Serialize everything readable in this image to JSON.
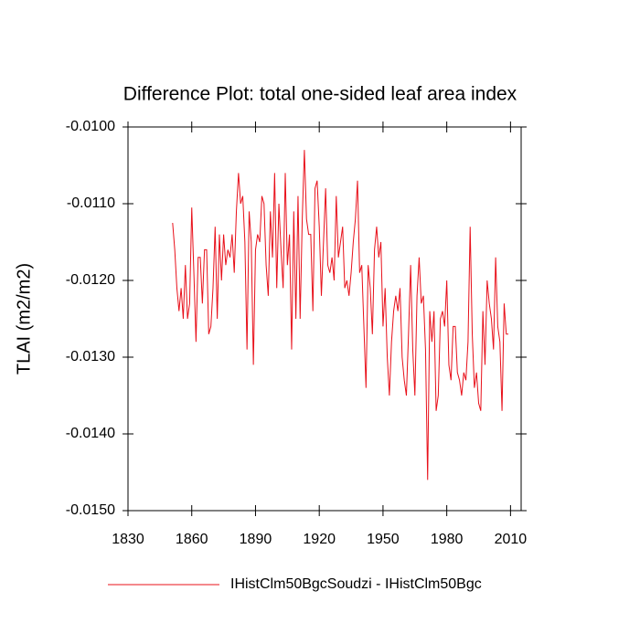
{
  "chart_data": {
    "type": "line",
    "title": "Difference Plot: total one-sided leaf area index",
    "y_label": "TLAI  (m2/m2)",
    "x": [
      1851,
      1852,
      1853,
      1854,
      1855,
      1856,
      1857,
      1858,
      1859,
      1860,
      1861,
      1862,
      1863,
      1864,
      1865,
      1866,
      1867,
      1868,
      1869,
      1870,
      1871,
      1872,
      1873,
      1874,
      1875,
      1876,
      1877,
      1878,
      1879,
      1880,
      1881,
      1882,
      1883,
      1884,
      1885,
      1886,
      1887,
      1888,
      1889,
      1890,
      1891,
      1892,
      1893,
      1894,
      1895,
      1896,
      1897,
      1898,
      1899,
      1900,
      1901,
      1902,
      1903,
      1904,
      1905,
      1906,
      1907,
      1908,
      1909,
      1910,
      1911,
      1912,
      1913,
      1914,
      1915,
      1916,
      1917,
      1918,
      1919,
      1920,
      1921,
      1922,
      1923,
      1924,
      1925,
      1926,
      1927,
      1928,
      1929,
      1930,
      1931,
      1932,
      1933,
      1934,
      1935,
      1936,
      1937,
      1938,
      1939,
      1940,
      1941,
      1942,
      1943,
      1944,
      1945,
      1946,
      1947,
      1948,
      1949,
      1950,
      1951,
      1952,
      1953,
      1954,
      1955,
      1956,
      1957,
      1958,
      1959,
      1960,
      1961,
      1962,
      1963,
      1964,
      1965,
      1966,
      1967,
      1968,
      1969,
      1970,
      1971,
      1972,
      1973,
      1974,
      1975,
      1976,
      1977,
      1978,
      1979,
      1980,
      1981,
      1982,
      1983,
      1984,
      1985,
      1986,
      1987,
      1988,
      1989,
      1990,
      1991,
      1992,
      1993,
      1994,
      1995,
      1996,
      1997,
      1998,
      1999,
      2000,
      2001,
      2002,
      2003,
      2004,
      2005,
      2006,
      2007,
      2008,
      2009
    ],
    "series": [
      {
        "name": "IHistClm50BgcSoudzi - IHistClm50Bgc",
        "color": "#e8101a",
        "values": [
          -0.01125,
          -0.0116,
          -0.0121,
          -0.0124,
          -0.0121,
          -0.0125,
          -0.0118,
          -0.0125,
          -0.0123,
          -0.01105,
          -0.0119,
          -0.0128,
          -0.0117,
          -0.0117,
          -0.0123,
          -0.0116,
          -0.0116,
          -0.0127,
          -0.0126,
          -0.0121,
          -0.0113,
          -0.0125,
          -0.0114,
          -0.012,
          -0.0114,
          -0.0118,
          -0.0116,
          -0.0117,
          -0.0114,
          -0.0119,
          -0.0111,
          -0.0106,
          -0.011,
          -0.0109,
          -0.0115,
          -0.0129,
          -0.0111,
          -0.0115,
          -0.0131,
          -0.0116,
          -0.0114,
          -0.0115,
          -0.0109,
          -0.011,
          -0.0118,
          -0.0122,
          -0.0111,
          -0.0117,
          -0.0106,
          -0.0121,
          -0.011,
          -0.0116,
          -0.0121,
          -0.0106,
          -0.0118,
          -0.0114,
          -0.0129,
          -0.0111,
          -0.0125,
          -0.0109,
          -0.0125,
          -0.0112,
          -0.0103,
          -0.0112,
          -0.0114,
          -0.0114,
          -0.0124,
          -0.0108,
          -0.0107,
          -0.0113,
          -0.0122,
          -0.0115,
          -0.0108,
          -0.0118,
          -0.0119,
          -0.0117,
          -0.012,
          -0.0109,
          -0.0117,
          -0.0115,
          -0.0113,
          -0.0121,
          -0.012,
          -0.0122,
          -0.0119,
          -0.0115,
          -0.0112,
          -0.0107,
          -0.0119,
          -0.0118,
          -0.0126,
          -0.0134,
          -0.0118,
          -0.0121,
          -0.0127,
          -0.0116,
          -0.0113,
          -0.0117,
          -0.0115,
          -0.0126,
          -0.0121,
          -0.013,
          -0.0135,
          -0.0128,
          -0.0124,
          -0.0122,
          -0.0124,
          -0.0121,
          -0.013,
          -0.0133,
          -0.0135,
          -0.0127,
          -0.0118,
          -0.0129,
          -0.0135,
          -0.0122,
          -0.0117,
          -0.0123,
          -0.0122,
          -0.0129,
          -0.0146,
          -0.0124,
          -0.0128,
          -0.0124,
          -0.0137,
          -0.0135,
          -0.0125,
          -0.0124,
          -0.0126,
          -0.012,
          -0.0131,
          -0.0133,
          -0.0126,
          -0.0126,
          -0.0132,
          -0.0133,
          -0.0135,
          -0.0132,
          -0.0133,
          -0.0128,
          -0.0113,
          -0.0127,
          -0.0134,
          -0.0132,
          -0.0136,
          -0.0137,
          -0.0124,
          -0.0131,
          -0.012,
          -0.0123,
          -0.0125,
          -0.0129,
          -0.0117,
          -0.0126,
          -0.0128,
          -0.0137,
          -0.0123,
          -0.0127,
          -0.0127
        ]
      }
    ],
    "xlim": [
      1830,
      2015
    ],
    "xticks": [
      1830,
      1860,
      1890,
      1920,
      1950,
      1980,
      2010
    ],
    "ylim": [
      -0.015,
      -0.01
    ],
    "yticks": [
      {
        "value": -0.015,
        "label": "-0.0150"
      },
      {
        "value": -0.014,
        "label": "-0.0140"
      },
      {
        "value": -0.013,
        "label": "-0.0130"
      },
      {
        "value": -0.012,
        "label": "-0.0120"
      },
      {
        "value": -0.011,
        "label": "-0.0110"
      },
      {
        "value": -0.01,
        "label": "-0.0100"
      }
    ],
    "grid": false,
    "legend": "bottom"
  }
}
